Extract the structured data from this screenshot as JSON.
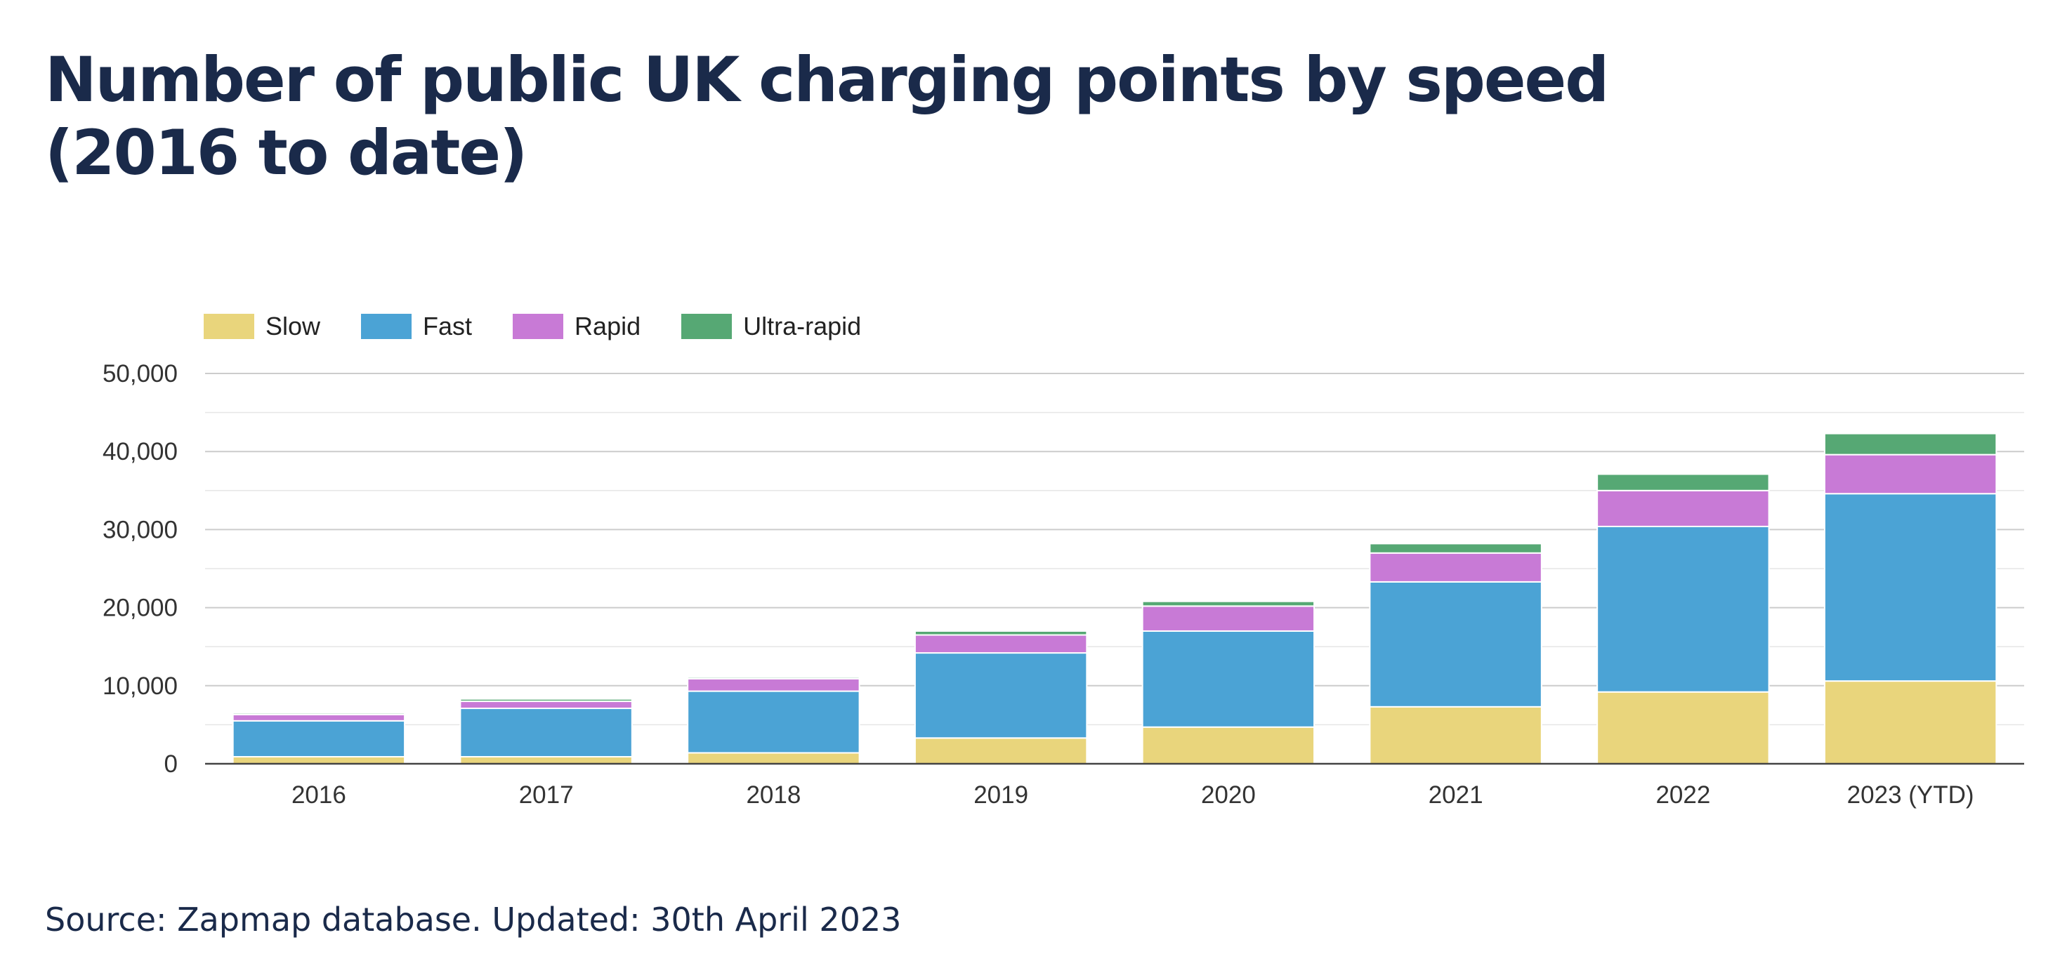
{
  "title_lines": [
    "Number of public UK charging points by speed",
    "(2016 to date)"
  ],
  "source": "Source: Zapmap database. Updated: 30th April 2023",
  "chart_data": {
    "type": "bar",
    "stacked": true,
    "title": "Number of public UK charging points by speed (2016 to date)",
    "categories": [
      "2016",
      "2017",
      "2018",
      "2019",
      "2020",
      "2021",
      "2022",
      "2023 (YTD)"
    ],
    "series": [
      {
        "name": "Slow",
        "color": "#e9d57c",
        "values": [
          900,
          900,
          1400,
          3300,
          4700,
          7300,
          9200,
          10600
        ]
      },
      {
        "name": "Fast",
        "color": "#4ba3d5",
        "values": [
          4600,
          6200,
          7900,
          10900,
          12300,
          16000,
          21200,
          24000
        ]
      },
      {
        "name": "Rapid",
        "color": "#c87ad6",
        "values": [
          800,
          900,
          1600,
          2300,
          3200,
          3700,
          4600,
          5000
        ]
      },
      {
        "name": "Ultra-rapid",
        "color": "#56a874",
        "values": [
          200,
          300,
          200,
          500,
          600,
          1200,
          2100,
          2700
        ]
      }
    ],
    "ylim": [
      0,
      50000
    ],
    "yticks": [
      0,
      10000,
      20000,
      30000,
      40000,
      50000
    ],
    "ytick_labels": [
      "0",
      "10,000",
      "20,000",
      "30,000",
      "40,000",
      "50,000"
    ],
    "grid": true,
    "legend_position": "top-left"
  }
}
